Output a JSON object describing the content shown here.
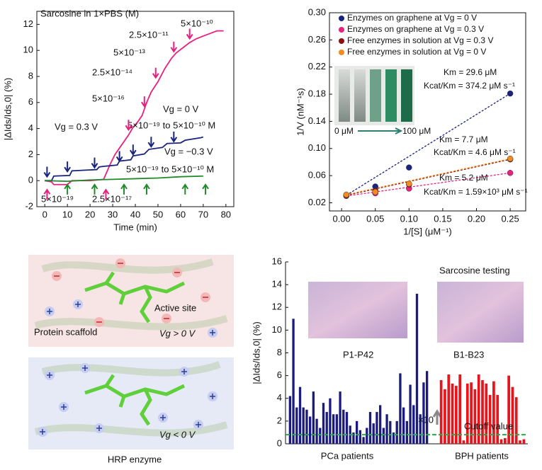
{
  "chart_data": [
    {
      "type": "line",
      "xlabel": "Time (min)",
      "ylabel": "|ΔIds/Ids,0| (%)",
      "xlim": [
        -3.5,
        83.5
      ],
      "ylim": [
        -2,
        13
      ],
      "xticks": [
        0,
        10,
        20,
        30,
        40,
        50,
        60,
        70,
        80
      ],
      "yticks": [
        -2,
        0,
        2,
        4,
        6,
        8,
        10,
        12
      ],
      "series": [
        {
          "name": "Vg = 0.3 V",
          "color": "#e8207f",
          "x": [
            0,
            3,
            4,
            10,
            12,
            20,
            26,
            27,
            29,
            31,
            33,
            35,
            37,
            39,
            41,
            43,
            45,
            47,
            50,
            53,
            56,
            58,
            61,
            64,
            67,
            70,
            73,
            76,
            79
          ],
          "values": [
            0,
            -0.1,
            -0.3,
            -0.3,
            0,
            0,
            0.1,
            0.5,
            1.3,
            2,
            2.5,
            3,
            3.5,
            4.1,
            4.5,
            5,
            6,
            6.8,
            7.6,
            8.6,
            9.4,
            9.8,
            10.2,
            10.6,
            10.9,
            11.1,
            11.3,
            11.5,
            11.5
          ]
        },
        {
          "name": "Vg = 0 V",
          "color": "#1a237e",
          "x": [
            0,
            3,
            4,
            11,
            12,
            23,
            24,
            26,
            32,
            33,
            38,
            39,
            44,
            46,
            52,
            54,
            60,
            62,
            69,
            70
          ],
          "values": [
            0,
            0,
            0.35,
            0.4,
            0.75,
            0.85,
            1.05,
            1.1,
            1.2,
            1.5,
            1.6,
            1.9,
            2.05,
            2.4,
            2.55,
            2.85,
            2.9,
            3.1,
            3.3,
            3.35
          ]
        },
        {
          "name": "Vg = −0.3 V",
          "color": "#1e8c2a",
          "x": [
            0,
            10,
            20,
            30,
            40,
            50,
            60,
            70
          ],
          "values": [
            0,
            -0.05,
            0.05,
            0.1,
            0.15,
            0.2,
            0.3,
            0.35
          ]
        }
      ],
      "annotations": [
        "Sarcosine in 1×PBS (M)",
        "5×10⁻¹⁰",
        "2.5×10⁻¹¹",
        "5×10⁻¹³",
        "2.5×10⁻¹⁴",
        "5×10⁻¹⁶",
        "5×10⁻¹⁹ to 5×10⁻¹⁰ M",
        "5×10⁻¹⁹ to 5×10⁻¹⁰ M",
        "5×10⁻¹⁹",
        "2.5×10⁻¹⁷"
      ]
    },
    {
      "type": "scatter",
      "xlabel": "1/[S] (μM⁻¹)",
      "ylabel": "1/V (nM⁻¹s)",
      "xlim": [
        -0.018,
        0.273
      ],
      "ylim": [
        0.008,
        0.3
      ],
      "xticks": [
        {
          "value": 0,
          "label": "0.00"
        },
        0.05,
        {
          "value": 0.1,
          "label": "0.10"
        },
        0.15,
        {
          "value": 0.2,
          "label": "0.20"
        },
        0.25
      ],
      "yticks": [
        0.02,
        0.06,
        {
          "value": 0.1,
          "label": "0.10"
        },
        0.14,
        0.18,
        0.22,
        0.26,
        {
          "value": 0.3,
          "label": "0.30"
        }
      ],
      "series": [
        {
          "name": "Enzymes on graphene at Vg = 0 V",
          "color": "#1a237e",
          "x": [
            0.007,
            0.05,
            0.1,
            0.25
          ],
          "values": [
            0.031,
            0.044,
            0.072,
            0.181
          ]
        },
        {
          "name": "Enzymes on graphene at Vg = 0.3 V",
          "color": "#e8207f",
          "x": [
            0.007,
            0.05,
            0.1,
            0.25
          ],
          "values": [
            0.03,
            0.034,
            0.041,
            0.064
          ]
        },
        {
          "name": "Free enzymes in solution at Vg = 0.3 V",
          "color": "#8b1010",
          "x": [
            0.007,
            0.05,
            0.1,
            0.25
          ],
          "values": [
            0.031,
            0.038,
            0.047,
            0.084
          ]
        },
        {
          "name": "Free enzymes in solution at Vg = 0 V",
          "color": "#f28c1e",
          "x": [
            0.007,
            0.05,
            0.1,
            0.25
          ],
          "values": [
            0.032,
            0.036,
            0.048,
            0.085
          ]
        }
      ],
      "annotations": [
        "Km = 29.6 μM",
        "Kcat/Km = 374.2 μM s⁻¹",
        "Km = 7.7 μM",
        "Kcat/Km = 4.6 μM s⁻¹",
        "Km = 5.2 μM",
        "Kcat/Km = 1.59×10³ μM s⁻¹",
        "0 μM",
        "100 μM"
      ]
    },
    {
      "type": "bar",
      "ylabel": "|ΔIds/Ids,0| (%)",
      "ylim": [
        0,
        16
      ],
      "yticks": [
        0,
        2,
        4,
        6,
        8,
        10,
        12,
        14,
        16
      ],
      "series": [
        {
          "name": "PCa patients",
          "color": "#1a1a80",
          "values": [
            4.2,
            11.0,
            3.2,
            5.0,
            3.2,
            3.0,
            2.4,
            4.6,
            2.2,
            1.4,
            3.6,
            2.8,
            4.0,
            2.6,
            2.6,
            4.6,
            3.0,
            2.8,
            1.6,
            1.0,
            2.0,
            1.2,
            0.6,
            1.4,
            2.8,
            1.8,
            2.8,
            3.4,
            1.4,
            2.6,
            2.0,
            1.0,
            2.0,
            6.2,
            3.2,
            2.0,
            5.2,
            3.4,
            13.2,
            2.6,
            5.4,
            6.4
          ]
        },
        {
          "name": "BPH patients",
          "color": "#e8141c",
          "values": [
            5.6,
            4.8,
            6.1,
            5.3,
            5.1,
            6.1,
            0.3,
            5.3,
            5.4,
            4.8,
            6.1,
            5.6,
            5.3,
            4.3,
            5.5,
            4.3,
            0.4,
            0.5,
            6.0,
            5.0,
            4.1,
            0.3,
            0.4
          ]
        }
      ],
      "cutoff": {
        "value": 0.8,
        "label": "Cutoff value",
        "color": "#2aa84a"
      },
      "annotations": [
        "Sarcosine testing",
        "P1-P42",
        "B1-B23",
        "×10"
      ]
    }
  ],
  "illustration": {
    "labels": [
      "Protein scaffold",
      "Active site",
      "Vg > 0 V",
      "Vg < 0 V",
      "HRP enzyme"
    ]
  }
}
